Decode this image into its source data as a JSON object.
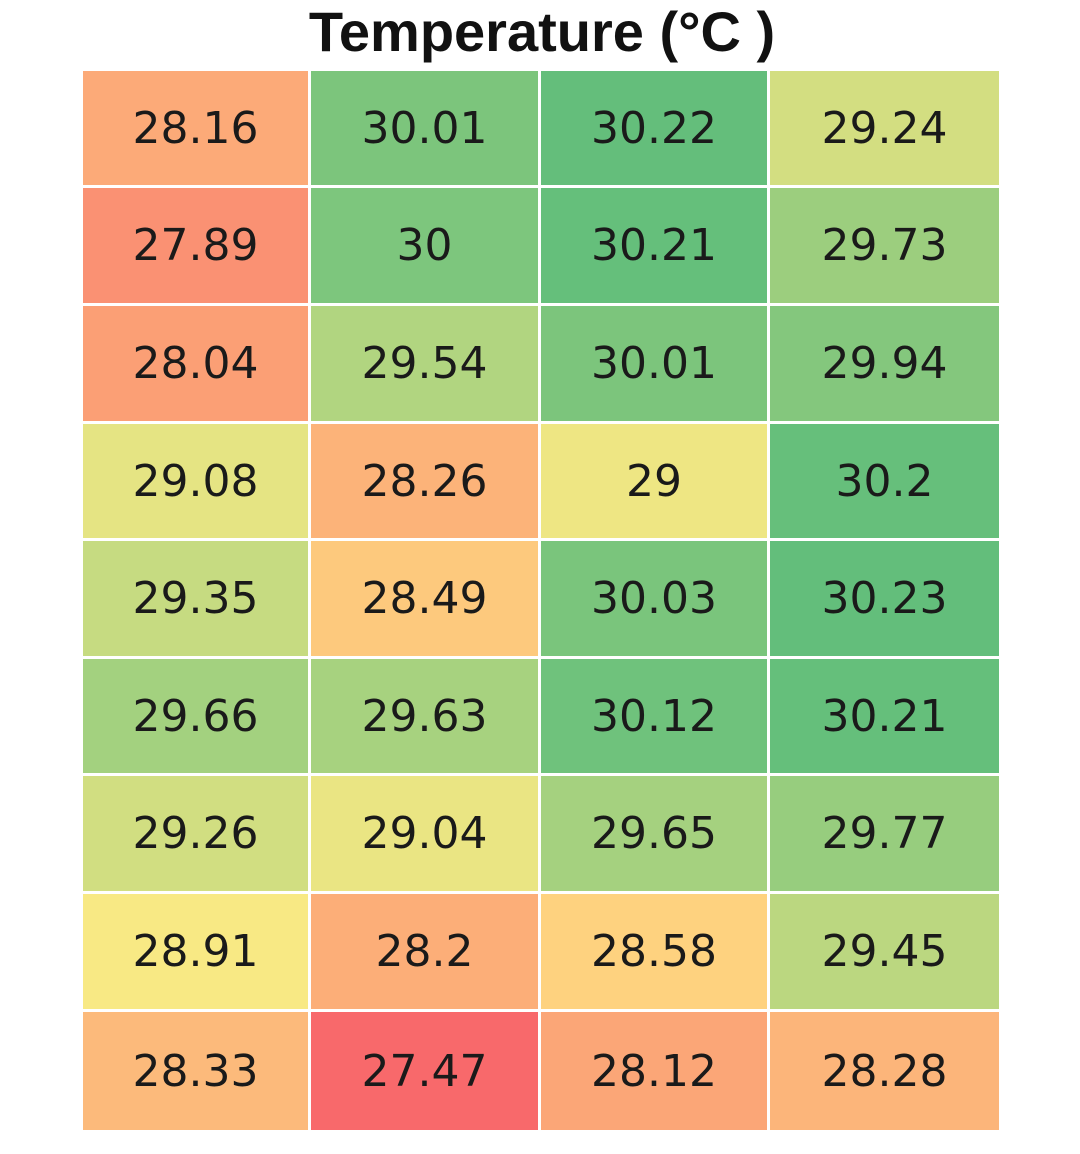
{
  "chart_data": {
    "type": "heatmap",
    "title": "Temperature (°C )",
    "rows": [
      [
        "28.16",
        "30.01",
        "30.22",
        "29.24"
      ],
      [
        "27.89",
        "30",
        "30.21",
        "29.73"
      ],
      [
        "28.04",
        "29.54",
        "30.01",
        "29.94"
      ],
      [
        "29.08",
        "28.26",
        "29",
        "30.2"
      ],
      [
        "29.35",
        "28.49",
        "30.03",
        "30.23"
      ],
      [
        "29.66",
        "29.63",
        "30.12",
        "30.21"
      ],
      [
        "29.26",
        "29.04",
        "29.65",
        "29.77"
      ],
      [
        "28.91",
        "28.2",
        "28.58",
        "29.45"
      ],
      [
        "28.33",
        "27.47",
        "28.12",
        "28.28"
      ]
    ],
    "value_range": [
      27.47,
      30.23
    ],
    "color_scale": [
      "#f8696b",
      "#ffeb84",
      "#63be7b"
    ],
    "grid": false,
    "legend": "none"
  }
}
